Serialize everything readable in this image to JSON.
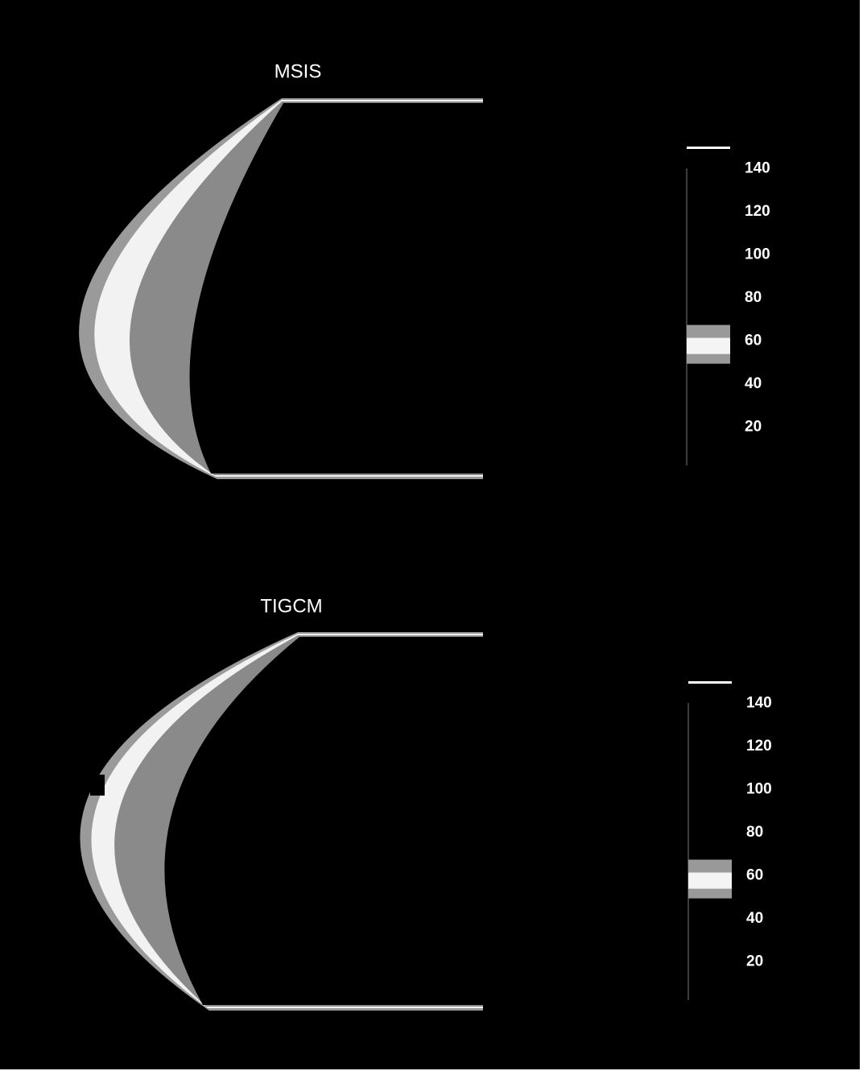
{
  "chart_data": [
    {
      "type": "image",
      "title": "MSIS",
      "clim": [
        0,
        150
      ],
      "cticks": [
        20,
        40,
        60,
        80,
        100,
        120,
        140
      ]
    },
    {
      "type": "image",
      "title": "TIGCM",
      "clim": [
        0,
        150
      ],
      "cticks": [
        20,
        40,
        60,
        80,
        100,
        120,
        140
      ]
    }
  ]
}
